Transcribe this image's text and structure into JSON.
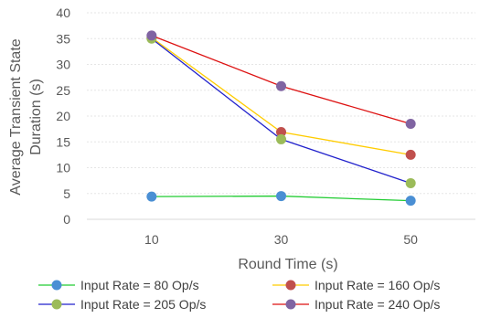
{
  "chart_data": {
    "type": "line",
    "title": "",
    "xlabel": "Round Time (s)",
    "ylabel": [
      "Average  Transient  State",
      "Duration (s)"
    ],
    "categories": [
      "10",
      "30",
      "50"
    ],
    "ylim": [
      0,
      40
    ],
    "yticks": [
      "0",
      "5",
      "10",
      "15",
      "20",
      "25",
      "30",
      "35",
      "40"
    ],
    "grid": true,
    "legend": "bottom",
    "series": [
      {
        "name": "Input Rate = 80 Op/s",
        "values": [
          4.4,
          4.5,
          3.6
        ],
        "line_color": "#22cc33",
        "marker_color": "#4a8fd4"
      },
      {
        "name": "Input Rate = 160 Op/s",
        "values": [
          35.2,
          16.9,
          12.5
        ],
        "line_color": "#ffcc00",
        "marker_color": "#c0504d"
      },
      {
        "name": "Input Rate = 205 Op/s",
        "values": [
          35.0,
          15.5,
          7.0
        ],
        "line_color": "#2222cc",
        "marker_color": "#9bbb59"
      },
      {
        "name": "Input Rate = 240 Op/s",
        "values": [
          35.6,
          25.8,
          18.5
        ],
        "line_color": "#dd1111",
        "marker_color": "#8064a2"
      }
    ]
  }
}
